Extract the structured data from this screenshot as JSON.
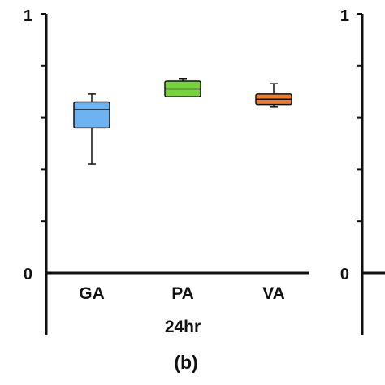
{
  "chart_data": [
    {
      "type": "box",
      "panel_label": "(b)",
      "group_label": "24hr",
      "ylim": [
        0,
        1
      ],
      "yticks": [
        "0",
        "1"
      ],
      "categories": [
        "GA",
        "PA",
        "VA"
      ],
      "boxes": [
        {
          "name": "GA",
          "min": 0.42,
          "q1": 0.56,
          "median": 0.63,
          "q3": 0.66,
          "max": 0.69,
          "color": "#6db3f2"
        },
        {
          "name": "PA",
          "min": 0.68,
          "q1": 0.68,
          "median": 0.71,
          "q3": 0.74,
          "max": 0.75,
          "color": "#78d23c"
        },
        {
          "name": "VA",
          "min": 0.64,
          "q1": 0.65,
          "median": 0.67,
          "q3": 0.69,
          "max": 0.73,
          "color": "#f07a32"
        }
      ]
    },
    {
      "type": "box",
      "ylim": [
        0,
        1
      ],
      "yticks": [
        "0",
        "1"
      ],
      "partial": true
    }
  ]
}
